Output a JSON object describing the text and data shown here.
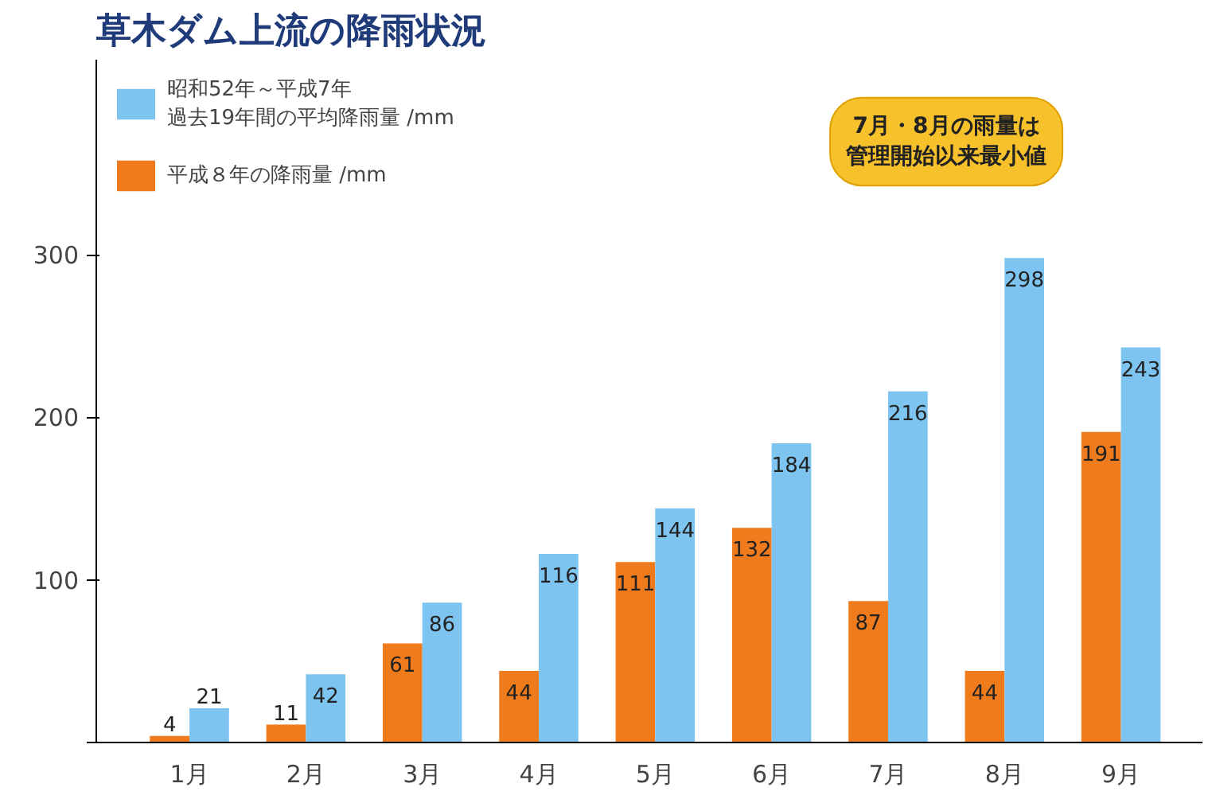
{
  "chart_data": {
    "type": "bar",
    "title": "草木ダム上流の降雨状況",
    "categories": [
      "1月",
      "2月",
      "3月",
      "4月",
      "5月",
      "6月",
      "7月",
      "8月",
      "9月"
    ],
    "series": [
      {
        "name": "平成８年の降雨量 /mm",
        "color": "#f07b1c",
        "values": [
          4,
          11,
          61,
          44,
          111,
          132,
          87,
          44,
          191
        ]
      },
      {
        "name": "昭和52年～平成7年過去19年間の平均降雨量 /mm",
        "color": "#7ec4f0",
        "values": [
          21,
          42,
          86,
          116,
          144,
          184,
          216,
          298,
          243
        ]
      }
    ],
    "ylim": [
      0,
      420
    ],
    "yticks": [
      {
        "value": 0,
        "label": null
      },
      100,
      200,
      300
    ],
    "grid": false,
    "legend": "top left",
    "data_labels": true,
    "annotations": [
      "7月・8月の雨量は管理開始以来最小値"
    ]
  }
}
